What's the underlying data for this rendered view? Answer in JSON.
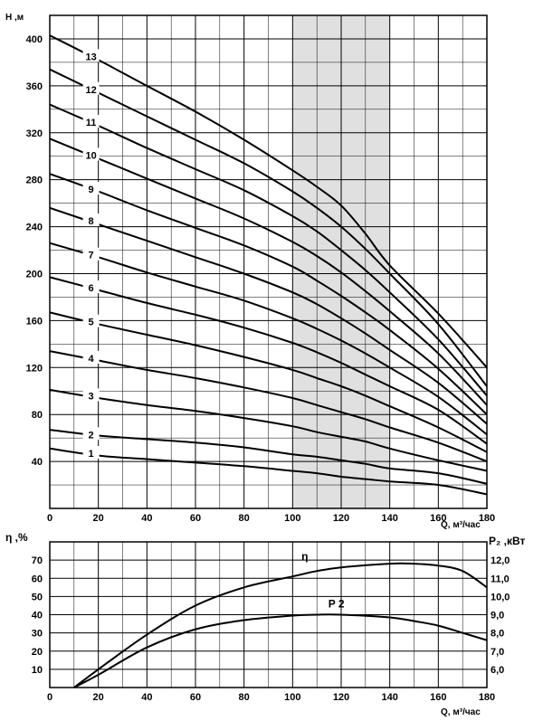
{
  "chart_data": [
    {
      "type": "line",
      "title": "",
      "ylabel": "H ,м",
      "xlabel": "Q, м³/час",
      "xlim": [
        0,
        180
      ],
      "ylim": [
        0,
        420
      ],
      "x_ticks": [
        0,
        20,
        40,
        60,
        80,
        100,
        120,
        140,
        160,
        180
      ],
      "y_ticks": [
        40,
        80,
        120,
        160,
        200,
        240,
        280,
        320,
        360,
        400
      ],
      "highlight_band": {
        "from": 100,
        "to": 140,
        "color": "#e0e0e0"
      },
      "x": [
        0,
        20,
        40,
        60,
        80,
        100,
        110,
        120,
        130,
        140,
        160,
        180
      ],
      "series": [
        {
          "name": "1",
          "values": [
            51,
            45,
            42,
            39,
            36,
            32,
            30,
            27,
            25,
            23,
            20,
            12
          ]
        },
        {
          "name": "2",
          "values": [
            67,
            62,
            59,
            56,
            52,
            46,
            44,
            41,
            38,
            34,
            30,
            21
          ]
        },
        {
          "name": "3",
          "values": [
            101,
            94,
            88,
            83,
            77,
            70,
            65,
            61,
            57,
            51,
            41,
            32
          ]
        },
        {
          "name": "4",
          "values": [
            134,
            126,
            118,
            111,
            103,
            94,
            88,
            82,
            76,
            69,
            56,
            40
          ]
        },
        {
          "name": "5",
          "values": [
            167,
            157,
            148,
            139,
            129,
            118,
            111,
            104,
            96,
            87,
            69,
            48
          ]
        },
        {
          "name": "6",
          "values": [
            197,
            186,
            175,
            165,
            154,
            141,
            133,
            124,
            114,
            104,
            84,
            55
          ]
        },
        {
          "name": "7",
          "values": [
            226,
            214,
            201,
            189,
            177,
            162,
            153,
            143,
            132,
            120,
            95,
            63
          ]
        },
        {
          "name": "8",
          "values": [
            256,
            242,
            228,
            214,
            200,
            184,
            174,
            162,
            149,
            135,
            107,
            72
          ]
        },
        {
          "name": "9",
          "values": [
            285,
            270,
            254,
            239,
            224,
            206,
            194,
            181,
            167,
            152,
            119,
            80
          ]
        },
        {
          "name": "10",
          "values": [
            315,
            298,
            281,
            264,
            247,
            227,
            215,
            201,
            185,
            168,
            132,
            88
          ]
        },
        {
          "name": "11",
          "values": [
            344,
            326,
            307,
            289,
            271,
            249,
            236,
            220,
            203,
            184,
            144,
            96
          ]
        },
        {
          "name": "12",
          "values": [
            374,
            354,
            334,
            314,
            294,
            270,
            256,
            240,
            221,
            200,
            157,
            104
          ]
        },
        {
          "name": "13",
          "values": [
            403,
            382,
            360,
            338,
            314,
            288,
            274,
            258,
            234,
            207,
            166,
            120
          ]
        }
      ],
      "curve_labels": [
        {
          "name": "1",
          "at_x": 17,
          "at_y": 47
        },
        {
          "name": "2",
          "at_x": 17,
          "at_y": 63
        },
        {
          "name": "3",
          "at_x": 17,
          "at_y": 96
        },
        {
          "name": "4",
          "at_x": 17,
          "at_y": 128
        },
        {
          "name": "5",
          "at_x": 17,
          "at_y": 159
        },
        {
          "name": "6",
          "at_x": 17,
          "at_y": 188
        },
        {
          "name": "7",
          "at_x": 17,
          "at_y": 216
        },
        {
          "name": "8",
          "at_x": 17,
          "at_y": 245
        },
        {
          "name": "9",
          "at_x": 17,
          "at_y": 272
        },
        {
          "name": "10",
          "at_x": 17,
          "at_y": 301
        },
        {
          "name": "11",
          "at_x": 17,
          "at_y": 329
        },
        {
          "name": "12",
          "at_x": 17,
          "at_y": 357
        },
        {
          "name": "13",
          "at_x": 17,
          "at_y": 385
        }
      ]
    },
    {
      "type": "line",
      "title": "",
      "ylabel": "η ,%",
      "ylabel_right": "P₂ ,кВт",
      "xlabel": "Q, м³/час",
      "xlim": [
        0,
        180
      ],
      "ylim": [
        0,
        80
      ],
      "ylim_right": [
        4.5,
        12.5
      ],
      "x_ticks": [
        0,
        20,
        40,
        60,
        80,
        100,
        120,
        140,
        160,
        180
      ],
      "y_ticks": [
        10,
        20,
        30,
        40,
        50,
        60,
        70
      ],
      "y_ticks_right": [
        "6,0",
        "7,0",
        "8,0",
        "9,0",
        "10,0",
        "11,0",
        "12,0"
      ],
      "x": [
        10,
        20,
        40,
        60,
        80,
        100,
        110,
        120,
        140,
        150,
        160,
        170,
        180
      ],
      "series": [
        {
          "name": "η",
          "axis": "left",
          "values": [
            0,
            10,
            29,
            45,
            55,
            61,
            64,
            66,
            68,
            68,
            67,
            64,
            55
          ]
        },
        {
          "name": "P₂",
          "axis": "left",
          "values": [
            0,
            7,
            22,
            32,
            37,
            39.5,
            40,
            40,
            38.5,
            36.5,
            34,
            30,
            26
          ]
        }
      ],
      "curve_labels": [
        {
          "name": "η",
          "display": "η",
          "at_x": 105,
          "at_y": 70
        },
        {
          "name": "P₂",
          "display": "P 2",
          "at_x": 118,
          "at_y": 44
        }
      ]
    }
  ]
}
